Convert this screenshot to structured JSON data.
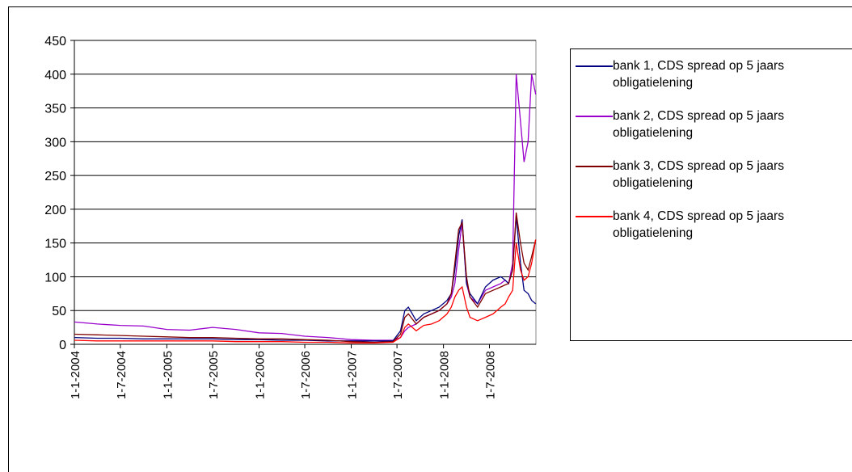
{
  "chart_data": {
    "type": "line",
    "x": [
      "2004-01-01",
      "2004-04-01",
      "2004-07-01",
      "2004-10-01",
      "2005-01-01",
      "2005-04-01",
      "2005-07-01",
      "2005-10-01",
      "2006-01-01",
      "2006-04-01",
      "2006-07-01",
      "2006-10-01",
      "2007-01-01",
      "2007-04-01",
      "2007-06-15",
      "2007-07-15",
      "2007-08-01",
      "2007-08-15",
      "2007-09-15",
      "2007-10-15",
      "2007-11-15",
      "2007-12-15",
      "2008-01-15",
      "2008-02-01",
      "2008-02-15",
      "2008-03-01",
      "2008-03-15",
      "2008-04-01",
      "2008-04-15",
      "2008-05-15",
      "2008-06-15",
      "2008-07-15",
      "2008-08-15",
      "2008-09-01",
      "2008-09-15",
      "2008-10-01",
      "2008-10-15",
      "2008-11-01",
      "2008-11-15",
      "2008-12-01",
      "2008-12-15",
      "2008-12-31"
    ],
    "series": [
      {
        "name": "bank 1, CDS spread op 5 jaars obligatielening",
        "color": "#000080",
        "values": [
          10,
          9,
          9,
          8,
          8,
          8,
          8,
          7,
          7,
          6,
          6,
          5,
          5,
          5,
          5,
          20,
          50,
          55,
          35,
          45,
          50,
          55,
          65,
          75,
          110,
          160,
          185,
          90,
          75,
          60,
          85,
          95,
          100,
          95,
          90,
          110,
          190,
          120,
          80,
          75,
          65,
          60
        ]
      },
      {
        "name": "bank 2, CDS spread op 5 jaars  obligatielening",
        "color": "#9900cc",
        "values": [
          33,
          30,
          28,
          27,
          22,
          21,
          25,
          22,
          17,
          16,
          12,
          10,
          7,
          6,
          6,
          10,
          20,
          25,
          30,
          40,
          45,
          50,
          60,
          70,
          90,
          140,
          180,
          90,
          70,
          60,
          80,
          85,
          90,
          95,
          90,
          120,
          400,
          330,
          270,
          300,
          400,
          370
        ]
      },
      {
        "name": "bank 3, CDS spread op 5 jaars obligatielening",
        "color": "#800000",
        "values": [
          15,
          14,
          13,
          12,
          11,
          10,
          10,
          9,
          8,
          8,
          7,
          6,
          4,
          3,
          4,
          15,
          40,
          45,
          30,
          40,
          45,
          50,
          60,
          75,
          120,
          170,
          180,
          100,
          70,
          55,
          75,
          80,
          85,
          88,
          90,
          110,
          195,
          150,
          120,
          110,
          130,
          155
        ]
      },
      {
        "name": "bank 4, CDS spread op 5 jaars  obligatielening",
        "color": "#ff0000",
        "values": [
          6,
          5,
          5,
          5,
          5,
          5,
          5,
          4,
          4,
          4,
          3,
          3,
          2,
          2,
          3,
          10,
          25,
          30,
          20,
          28,
          30,
          35,
          45,
          55,
          70,
          80,
          85,
          55,
          40,
          35,
          40,
          45,
          55,
          60,
          70,
          80,
          150,
          110,
          95,
          100,
          120,
          155
        ]
      }
    ],
    "xlim": [
      "2004-01-01",
      "2009-01-01"
    ],
    "xticks": [
      {
        "value": "2004-01-01",
        "label": "1-1-2004"
      },
      {
        "value": "2004-07-01",
        "label": "1-7-2004"
      },
      {
        "value": "2005-01-01",
        "label": "1-1-2005"
      },
      {
        "value": "2005-07-01",
        "label": "1-7-2005"
      },
      {
        "value": "2006-01-01",
        "label": "1-1-2006"
      },
      {
        "value": "2006-07-01",
        "label": "1-7-2006"
      },
      {
        "value": "2007-01-01",
        "label": "1-1-2007"
      },
      {
        "value": "2007-07-01",
        "label": "1-7-2007"
      },
      {
        "value": "2008-01-01",
        "label": "1-1-2008"
      },
      {
        "value": "2008-07-01",
        "label": "1-7-2008"
      }
    ],
    "ylim": [
      0,
      450
    ],
    "yticks": [
      0,
      50,
      100,
      150,
      200,
      250,
      300,
      350,
      400,
      450
    ],
    "grid": true,
    "legend": "right"
  }
}
